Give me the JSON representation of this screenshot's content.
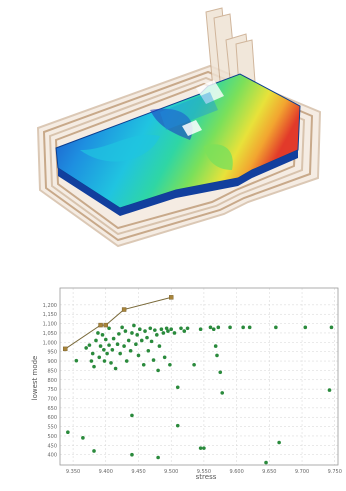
{
  "colors": {
    "frame_fill": "#efe3d4",
    "frame_stroke": "#c8a98a",
    "plate_edge": "#0b3d8f",
    "plot_border": "#9a9a9a",
    "grid": "#d4d4d4",
    "points": "#2a8a3c",
    "pareto_line": "#7a6a3a",
    "pareto_marker": "#a8843a",
    "contour": [
      "#1f3fbf",
      "#1e8fe0",
      "#20c4e0",
      "#2fd6a4",
      "#7be05a",
      "#e8e23a",
      "#f2a530",
      "#e23a2a"
    ]
  },
  "chart_data": {
    "type": "scatter",
    "xlabel": "stress",
    "ylabel": "lowest mode",
    "xlim": [
      9.33,
      9.755
    ],
    "ylim": [
      345,
      1290
    ],
    "x_ticks": [
      "9.350",
      "9.400",
      "9.450",
      "9.500",
      "9.550",
      "9.600",
      "9.650",
      "9.700",
      "9.750"
    ],
    "x_tick_values": [
      9.35,
      9.4,
      9.45,
      9.5,
      9.55,
      9.6,
      9.65,
      9.7,
      9.75
    ],
    "y_ticks": [
      "400",
      "450",
      "500",
      "550",
      "600",
      "650",
      "700",
      "750",
      "800",
      "850",
      "900",
      "950",
      "1,000",
      "1,050",
      "1,100",
      "1,150",
      "1,200"
    ],
    "y_tick_values": [
      400,
      450,
      500,
      550,
      600,
      650,
      700,
      750,
      800,
      850,
      900,
      950,
      1000,
      1050,
      1100,
      1150,
      1200
    ],
    "grid": true,
    "pareto_front": [
      {
        "x": 9.338,
        "y": 965
      },
      {
        "x": 9.392,
        "y": 1092
      },
      {
        "x": 9.4,
        "y": 1092
      },
      {
        "x": 9.428,
        "y": 1175
      },
      {
        "x": 9.5,
        "y": 1240
      }
    ],
    "points": [
      {
        "x": 9.338,
        "y": 965
      },
      {
        "x": 9.392,
        "y": 1092
      },
      {
        "x": 9.4,
        "y": 1092
      },
      {
        "x": 9.428,
        "y": 1175
      },
      {
        "x": 9.5,
        "y": 1240
      },
      {
        "x": 9.355,
        "y": 902
      },
      {
        "x": 9.37,
        "y": 970
      },
      {
        "x": 9.375,
        "y": 985
      },
      {
        "x": 9.378,
        "y": 900
      },
      {
        "x": 9.38,
        "y": 940
      },
      {
        "x": 9.382,
        "y": 870
      },
      {
        "x": 9.385,
        "y": 1010
      },
      {
        "x": 9.388,
        "y": 1050
      },
      {
        "x": 9.39,
        "y": 920
      },
      {
        "x": 9.392,
        "y": 980
      },
      {
        "x": 9.395,
        "y": 1040
      },
      {
        "x": 9.397,
        "y": 960
      },
      {
        "x": 9.398,
        "y": 900
      },
      {
        "x": 9.4,
        "y": 1015
      },
      {
        "x": 9.402,
        "y": 940
      },
      {
        "x": 9.405,
        "y": 985
      },
      {
        "x": 9.405,
        "y": 1075
      },
      {
        "x": 9.408,
        "y": 890
      },
      {
        "x": 9.41,
        "y": 960
      },
      {
        "x": 9.412,
        "y": 1020
      },
      {
        "x": 9.415,
        "y": 860
      },
      {
        "x": 9.418,
        "y": 990
      },
      {
        "x": 9.42,
        "y": 1045
      },
      {
        "x": 9.422,
        "y": 940
      },
      {
        "x": 9.425,
        "y": 1080
      },
      {
        "x": 9.428,
        "y": 980
      },
      {
        "x": 9.43,
        "y": 1060
      },
      {
        "x": 9.432,
        "y": 900
      },
      {
        "x": 9.435,
        "y": 1010
      },
      {
        "x": 9.438,
        "y": 955
      },
      {
        "x": 9.44,
        "y": 1050
      },
      {
        "x": 9.443,
        "y": 1090
      },
      {
        "x": 9.446,
        "y": 990
      },
      {
        "x": 9.448,
        "y": 1040
      },
      {
        "x": 9.45,
        "y": 930
      },
      {
        "x": 9.452,
        "y": 1070
      },
      {
        "x": 9.455,
        "y": 1010
      },
      {
        "x": 9.458,
        "y": 880
      },
      {
        "x": 9.46,
        "y": 1060
      },
      {
        "x": 9.463,
        "y": 1025
      },
      {
        "x": 9.465,
        "y": 955
      },
      {
        "x": 9.468,
        "y": 1075
      },
      {
        "x": 9.47,
        "y": 1005
      },
      {
        "x": 9.473,
        "y": 905
      },
      {
        "x": 9.475,
        "y": 1065
      },
      {
        "x": 9.478,
        "y": 1040
      },
      {
        "x": 9.48,
        "y": 850
      },
      {
        "x": 9.482,
        "y": 980
      },
      {
        "x": 9.485,
        "y": 1070
      },
      {
        "x": 9.488,
        "y": 1050
      },
      {
        "x": 9.49,
        "y": 920
      },
      {
        "x": 9.493,
        "y": 1075
      },
      {
        "x": 9.495,
        "y": 1060
      },
      {
        "x": 9.498,
        "y": 880
      },
      {
        "x": 9.5,
        "y": 1070
      },
      {
        "x": 9.505,
        "y": 1050
      },
      {
        "x": 9.51,
        "y": 760
      },
      {
        "x": 9.515,
        "y": 1075
      },
      {
        "x": 9.52,
        "y": 1060
      },
      {
        "x": 9.525,
        "y": 1075
      },
      {
        "x": 9.535,
        "y": 880
      },
      {
        "x": 9.545,
        "y": 1070
      },
      {
        "x": 9.56,
        "y": 1080
      },
      {
        "x": 9.565,
        "y": 1070
      },
      {
        "x": 9.568,
        "y": 980
      },
      {
        "x": 9.57,
        "y": 930
      },
      {
        "x": 9.572,
        "y": 1080
      },
      {
        "x": 9.575,
        "y": 840
      },
      {
        "x": 9.578,
        "y": 730
      },
      {
        "x": 9.59,
        "y": 1080
      },
      {
        "x": 9.61,
        "y": 1080
      },
      {
        "x": 9.62,
        "y": 1080
      },
      {
        "x": 9.66,
        "y": 1080
      },
      {
        "x": 9.705,
        "y": 1080
      },
      {
        "x": 9.745,
        "y": 1080
      },
      {
        "x": 9.742,
        "y": 745
      },
      {
        "x": 9.342,
        "y": 520
      },
      {
        "x": 9.365,
        "y": 490
      },
      {
        "x": 9.382,
        "y": 420
      },
      {
        "x": 9.44,
        "y": 400
      },
      {
        "x": 9.44,
        "y": 610
      },
      {
        "x": 9.48,
        "y": 385
      },
      {
        "x": 9.51,
        "y": 555
      },
      {
        "x": 9.545,
        "y": 435
      },
      {
        "x": 9.55,
        "y": 435
      },
      {
        "x": 9.645,
        "y": 358
      },
      {
        "x": 9.665,
        "y": 465
      }
    ]
  }
}
